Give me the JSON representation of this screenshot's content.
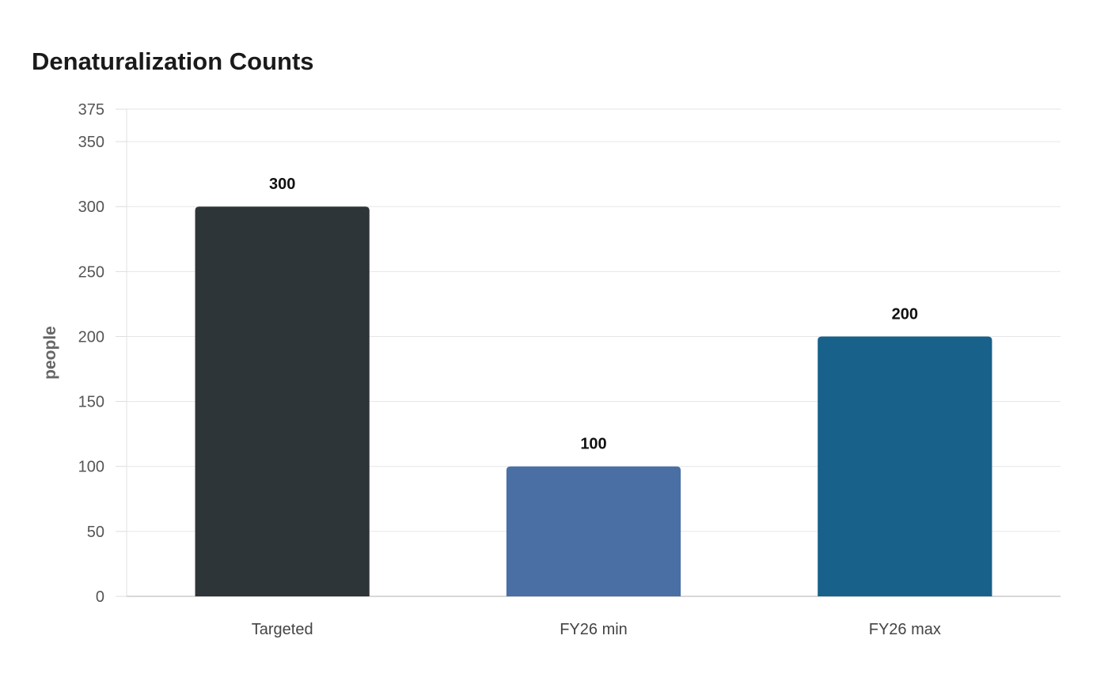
{
  "chart_data": {
    "type": "bar",
    "title": "Denaturalization Counts",
    "xlabel": "",
    "ylabel": "people",
    "categories": [
      "Targeted",
      "FY26 min",
      "FY26 max"
    ],
    "values": [
      300,
      100,
      200
    ],
    "data_labels": [
      "300",
      "100",
      "200"
    ],
    "colors": [
      "#2d3538",
      "#4a6fa5",
      "#17618a"
    ],
    "ylim": [
      0,
      375
    ],
    "yticks": [
      0,
      50,
      100,
      150,
      200,
      250,
      300,
      350,
      375
    ],
    "ytick_labels": [
      "0",
      "50",
      "100",
      "150",
      "200",
      "250",
      "300",
      "350",
      "375"
    ],
    "grid": true,
    "legend": "none"
  }
}
